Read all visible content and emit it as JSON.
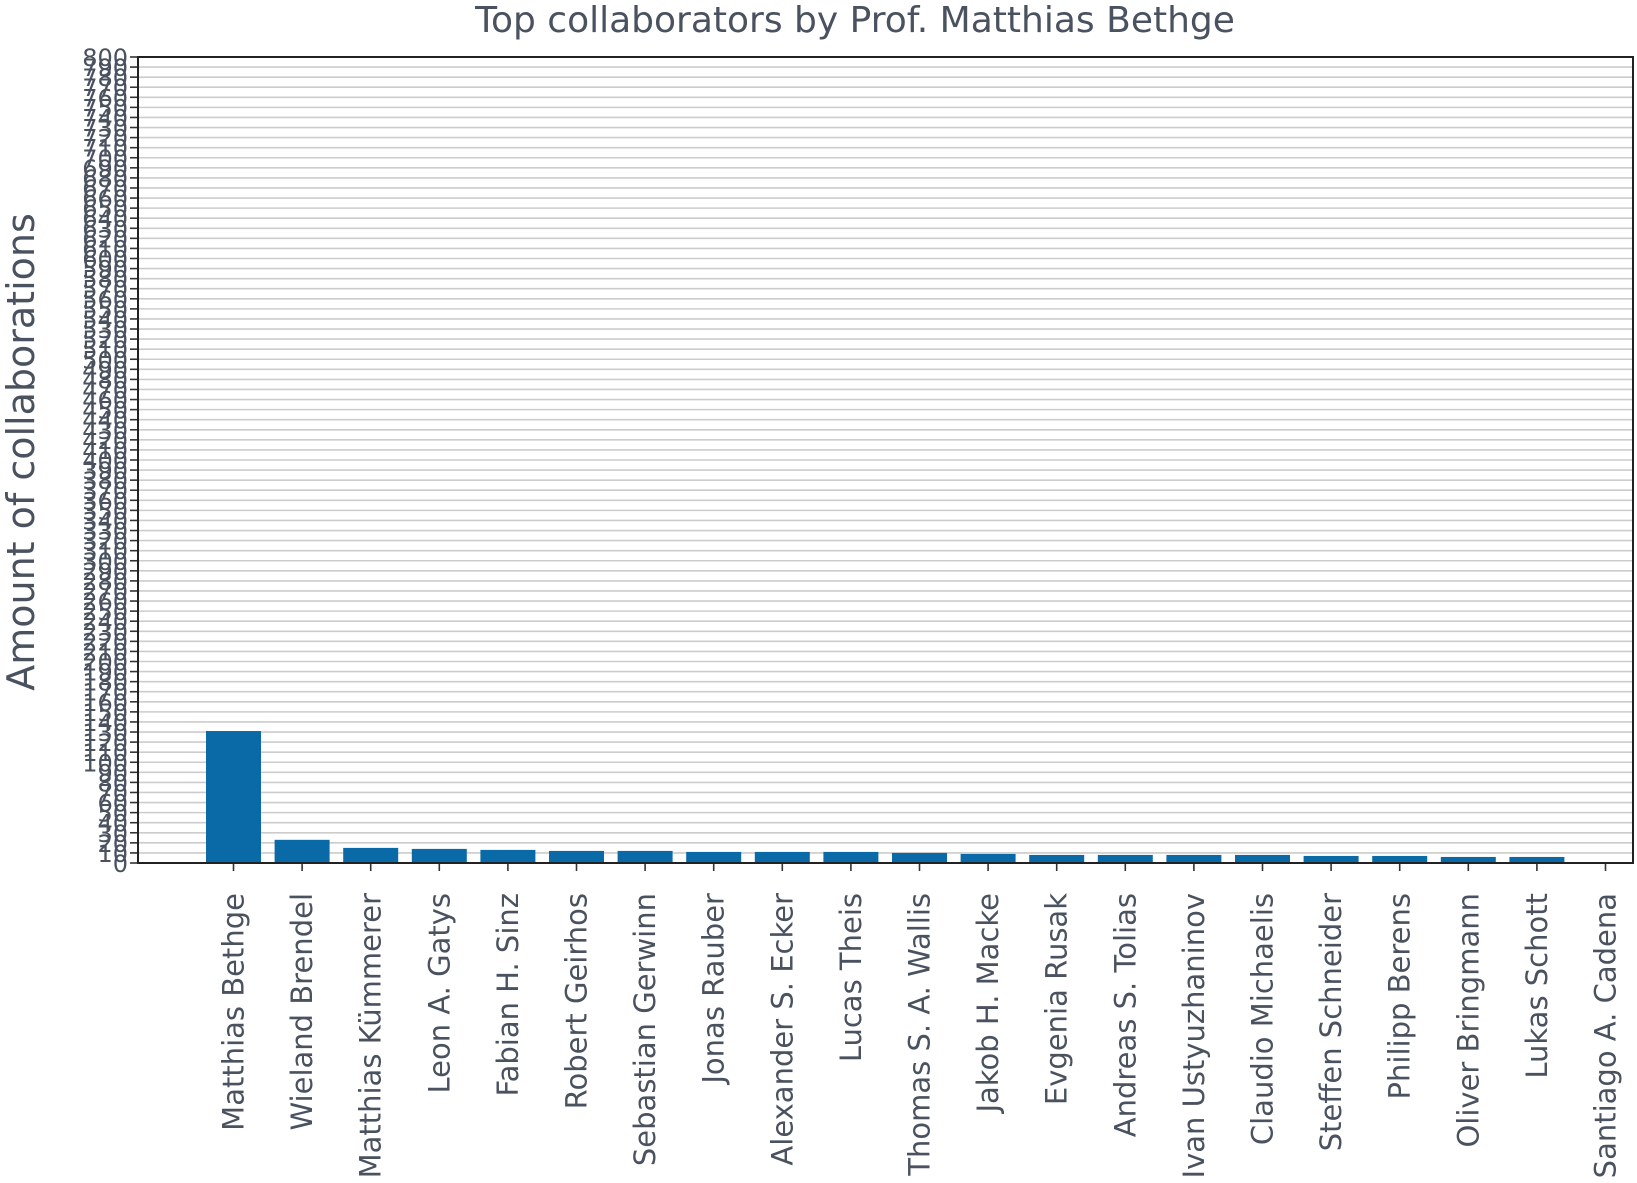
{
  "chart_data": {
    "type": "bar",
    "title": "Top collaborators by Prof. Matthias Bethge",
    "xlabel": "",
    "ylabel": "Amount of collaborations",
    "ylim": [
      0,
      800
    ],
    "yticks": [
      0,
      10,
      20,
      30,
      40,
      50,
      60,
      70,
      80,
      90,
      100,
      110,
      120,
      130,
      140,
      150,
      160,
      170,
      180,
      190,
      200,
      210,
      220,
      230,
      240,
      250,
      260,
      270,
      280,
      290,
      300,
      310,
      320,
      330,
      340,
      350,
      360,
      370,
      380,
      390,
      400,
      410,
      420,
      430,
      440,
      450,
      460,
      470,
      480,
      490,
      500,
      510,
      520,
      530,
      540,
      550,
      560,
      570,
      580,
      590,
      600,
      610,
      620,
      630,
      640,
      650,
      660,
      670,
      680,
      690,
      700,
      710,
      720,
      730,
      740,
      750,
      760,
      770,
      780,
      790,
      800
    ],
    "grid": true,
    "bar_color": "#0a6aa8",
    "categories": [
      "Matthias Bethge",
      "Wieland Brendel",
      "Matthias Kümmerer",
      "Leon A. Gatys",
      "Fabian H. Sinz",
      "Robert Geirhos",
      "Sebastian Gerwinn",
      "Jonas Rauber",
      "Alexander S. Ecker",
      "Lucas Theis",
      "Thomas S. A. Wallis",
      "Jakob H. Macke",
      "Evgenia Rusak",
      "Andreas S. Tolias",
      "Ivan Ustyuzhaninov",
      "Claudio Michaelis",
      "Steffen Schneider",
      "Philipp Berens",
      "Oliver Bringmann",
      "Lukas Schott",
      "Santiago A. Cadena"
    ],
    "values": [
      131,
      23,
      15,
      14,
      13,
      12,
      12,
      11,
      11,
      11,
      10,
      9,
      8,
      8,
      8,
      8,
      7,
      7,
      6,
      6,
      0
    ]
  }
}
